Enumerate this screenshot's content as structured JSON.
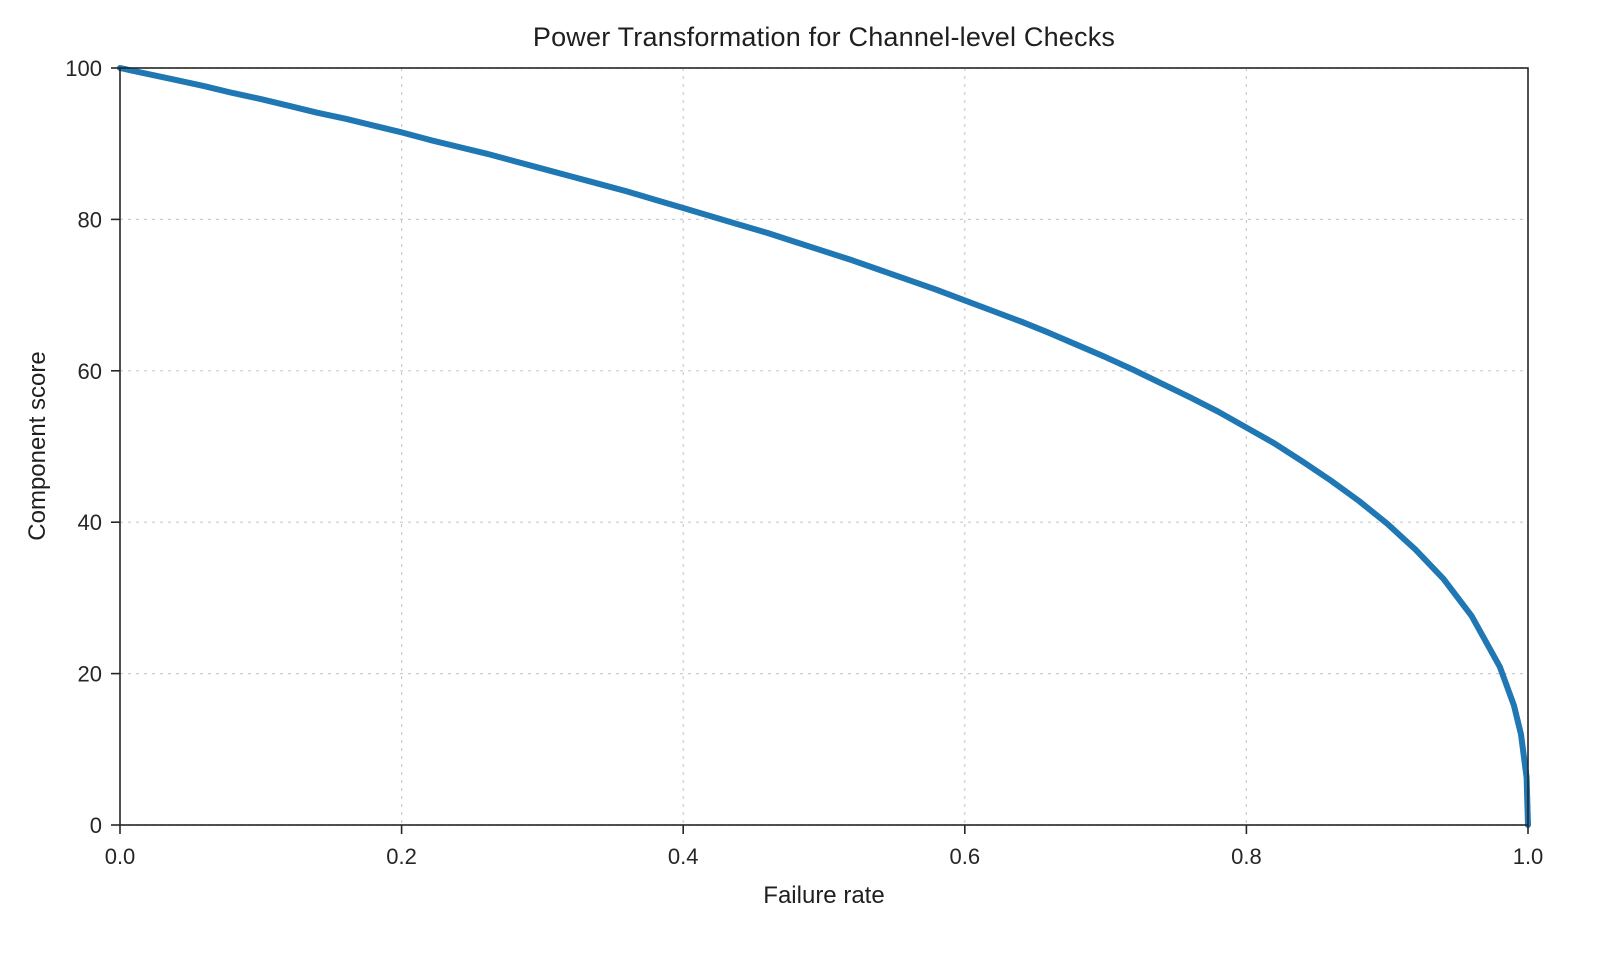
{
  "chart_data": {
    "type": "line",
    "title": "Power Transformation for Channel-level Checks",
    "xlabel": "Failure rate",
    "ylabel": "Component score",
    "xlim": [
      0.0,
      1.0
    ],
    "ylim": [
      0,
      100
    ],
    "xticks": [
      0.0,
      0.2,
      0.4,
      0.6,
      0.8,
      1.0
    ],
    "xtick_labels": [
      "0.0",
      "0.2",
      "0.4",
      "0.6",
      "0.8",
      "1.0"
    ],
    "yticks": [
      0,
      20,
      40,
      60,
      80,
      100
    ],
    "ytick_labels": [
      "0",
      "20",
      "40",
      "60",
      "80",
      "100"
    ],
    "grid": true,
    "legend": false,
    "line_color": "#1f77b4",
    "line_width": 6,
    "series": [
      {
        "name": "component-score-vs-failure-rate",
        "x": [
          0,
          0.02,
          0.04,
          0.06,
          0.08,
          0.1,
          0.12,
          0.14,
          0.16,
          0.18,
          0.2,
          0.22,
          0.24,
          0.26,
          0.28,
          0.3,
          0.32,
          0.34,
          0.36,
          0.38,
          0.4,
          0.42,
          0.44,
          0.46,
          0.48,
          0.5,
          0.52,
          0.54,
          0.56,
          0.58,
          0.6,
          0.62,
          0.64,
          0.66,
          0.68,
          0.7,
          0.72,
          0.74,
          0.76,
          0.78,
          0.8,
          0.82,
          0.84,
          0.86,
          0.88,
          0.9,
          0.92,
          0.94,
          0.96,
          0.98,
          0.99,
          0.995,
          0.999,
          1.0
        ],
        "y": [
          100,
          99.2,
          98.4,
          97.6,
          96.7,
          95.9,
          95.0,
          94.1,
          93.3,
          92.4,
          91.5,
          90.5,
          89.6,
          88.7,
          87.7,
          86.7,
          85.7,
          84.7,
          83.7,
          82.6,
          81.5,
          80.4,
          79.3,
          78.2,
          77.0,
          75.8,
          74.6,
          73.3,
          72.0,
          70.7,
          69.3,
          67.9,
          66.5,
          65.0,
          63.4,
          61.8,
          60.1,
          58.3,
          56.5,
          54.6,
          52.5,
          50.4,
          48.0,
          45.5,
          42.8,
          39.8,
          36.4,
          32.5,
          27.6,
          20.9,
          15.8,
          12.0,
          6.3,
          0
        ]
      }
    ]
  }
}
